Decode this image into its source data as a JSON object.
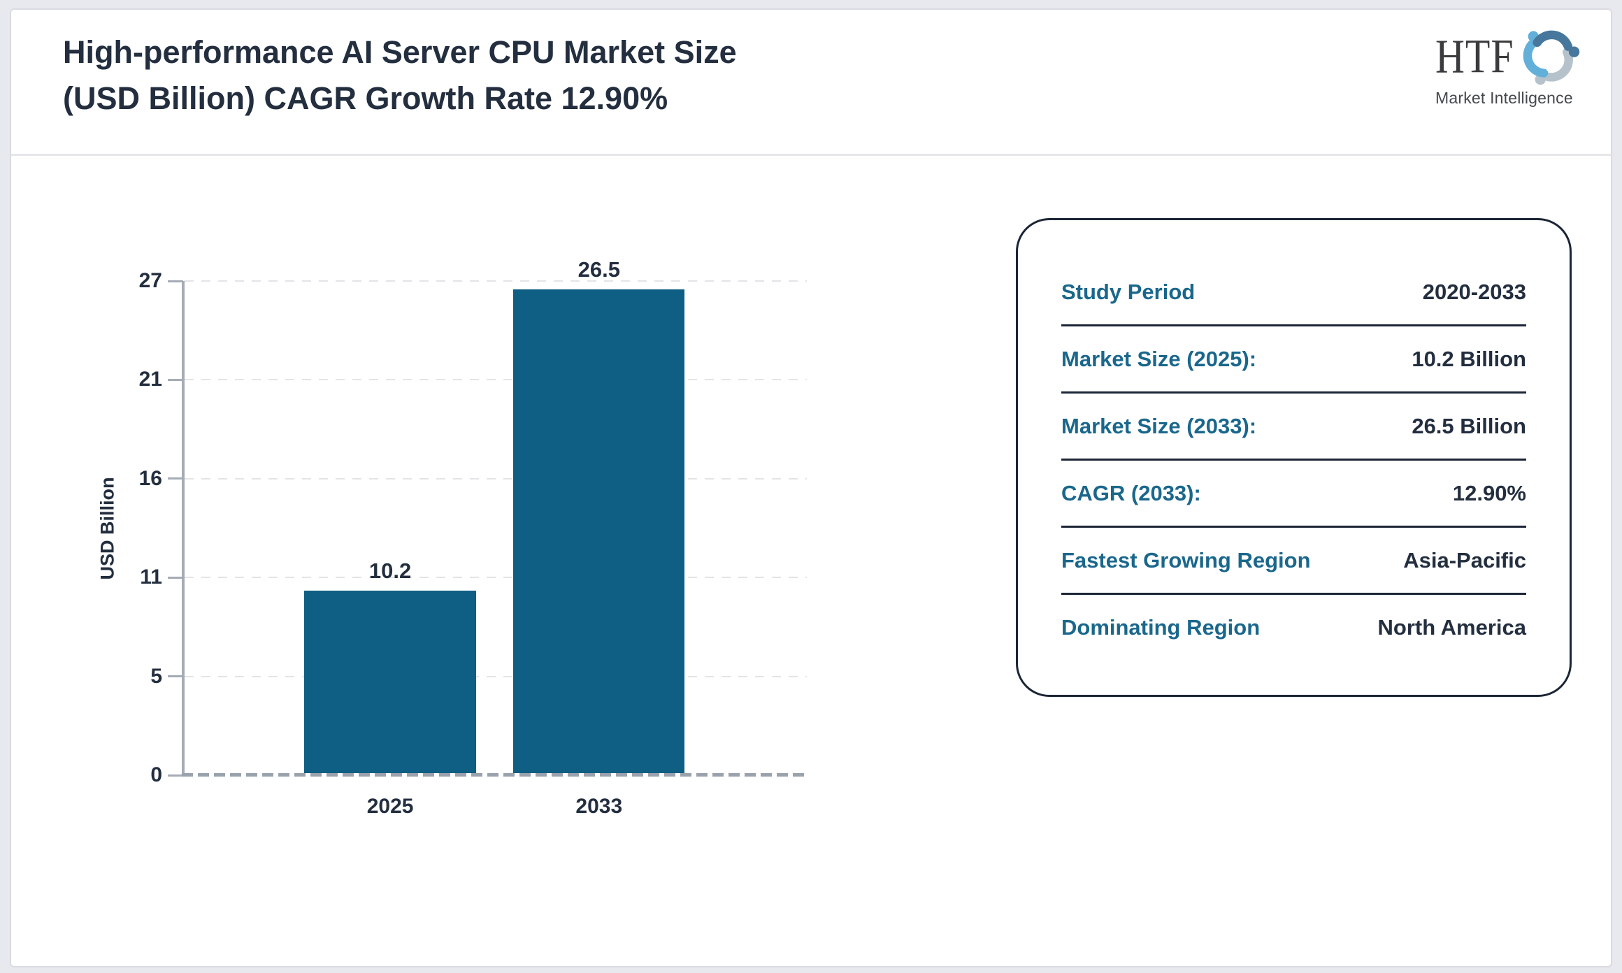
{
  "header": {
    "title_lines": [
      "High-performance AI Server CPU Market Size",
      "(USD Billion) CAGR Growth Rate 12.90%"
    ]
  },
  "logo": {
    "text": "HTF",
    "subtext": "Market Intelligence"
  },
  "chart_data": {
    "type": "bar",
    "categories": [
      "2025",
      "2033"
    ],
    "values": [
      10.2,
      26.5
    ],
    "title": "High-performance AI Server CPU Market Size (USD Billion) CAGR Growth Rate 12.90%",
    "xlabel": "",
    "ylabel": "USD Billion",
    "yticks": [
      0,
      5,
      11,
      16,
      21,
      27
    ],
    "ylim": [
      0,
      27
    ],
    "grid": "horizontal-dashed",
    "legend": "none",
    "bar_color": "#0f5e84",
    "bar_centers_pct": [
      33.8,
      67.9
    ],
    "bar_width_pct": 28
  },
  "panel": {
    "rows": [
      {
        "label": "Study Period",
        "value": "2020-2033"
      },
      {
        "label": "Market Size (2025):",
        "value": "10.2 Billion"
      },
      {
        "label": "Market Size (2033):",
        "value": "26.5 Billion"
      },
      {
        "label": "CAGR (2033):",
        "value": "12.90%"
      },
      {
        "label": "Fastest Growing Region",
        "value": "Asia-Pacific"
      },
      {
        "label": "Dominating Region",
        "value": "North America"
      }
    ]
  },
  "colors": {
    "bar": "#0f5e84",
    "panel_label_teal": "#1a678c",
    "text_navy": "#232e3f",
    "axis_gray": "#a6acb6",
    "grid_gray": "#e2e4e8",
    "divider_gray": "#e4e6ea",
    "panel_border": "#1b2535",
    "logo_light_blue": "#62b0d9",
    "logo_steel_blue": "#47779c",
    "logo_gray": "#b6c2cb"
  }
}
